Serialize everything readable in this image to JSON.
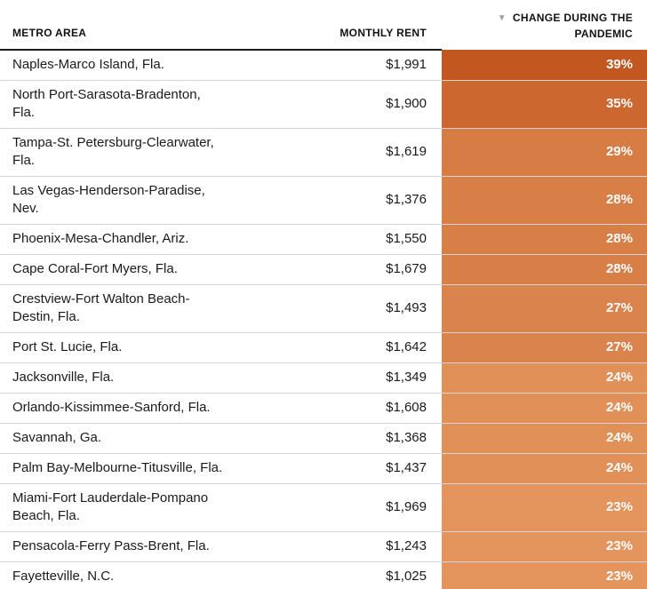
{
  "table": {
    "columns": [
      {
        "key": "metro",
        "label": "METRO AREA"
      },
      {
        "key": "rent",
        "label": "MONTHLY RENT"
      },
      {
        "key": "change",
        "label_line1": "CHANGE DURING THE",
        "label_line2": "PANDEMIC",
        "sort_icon": "▼",
        "sort_direction": "desc"
      }
    ],
    "rows": [
      {
        "metro_lines": [
          "Naples-Marco Island, Fla."
        ],
        "rent": "$1,991",
        "change": "39%",
        "color": "#c2571f"
      },
      {
        "metro_lines": [
          "North Port-Sarasota-Bradenton,",
          "Fla."
        ],
        "rent": "$1,900",
        "change": "35%",
        "color": "#cb672f"
      },
      {
        "metro_lines": [
          "Tampa-St. Petersburg-Clearwater,",
          "Fla."
        ],
        "rent": "$1,619",
        "change": "29%",
        "color": "#d67c44"
      },
      {
        "metro_lines": [
          "Las Vegas-Henderson-Paradise,",
          "Nev."
        ],
        "rent": "$1,376",
        "change": "28%",
        "color": "#d87f48"
      },
      {
        "metro_lines": [
          "Phoenix-Mesa-Chandler, Ariz."
        ],
        "rent": "$1,550",
        "change": "28%",
        "color": "#d87f48"
      },
      {
        "metro_lines": [
          "Cape Coral-Fort Myers, Fla."
        ],
        "rent": "$1,679",
        "change": "28%",
        "color": "#d87f48"
      },
      {
        "metro_lines": [
          "Crestview-Fort Walton Beach-",
          "Destin, Fla."
        ],
        "rent": "$1,493",
        "change": "27%",
        "color": "#da834c"
      },
      {
        "metro_lines": [
          "Port St. Lucie, Fla."
        ],
        "rent": "$1,642",
        "change": "27%",
        "color": "#da834c"
      },
      {
        "metro_lines": [
          "Jacksonville, Fla."
        ],
        "rent": "$1,349",
        "change": "24%",
        "color": "#e19058"
      },
      {
        "metro_lines": [
          "Orlando-Kissimmee-Sanford, Fla."
        ],
        "rent": "$1,608",
        "change": "24%",
        "color": "#e19058"
      },
      {
        "metro_lines": [
          "Savannah, Ga."
        ],
        "rent": "$1,368",
        "change": "24%",
        "color": "#e19058"
      },
      {
        "metro_lines": [
          "Palm Bay-Melbourne-Titusville, Fla."
        ],
        "rent": "$1,437",
        "change": "24%",
        "color": "#e19058"
      },
      {
        "metro_lines": [
          "Miami-Fort Lauderdale-Pompano",
          "Beach, Fla."
        ],
        "rent": "$1,969",
        "change": "23%",
        "color": "#e4955d"
      },
      {
        "metro_lines": [
          "Pensacola-Ferry Pass-Brent, Fla."
        ],
        "rent": "$1,243",
        "change": "23%",
        "color": "#e4955d"
      },
      {
        "metro_lines": [
          "Fayetteville, N.C."
        ],
        "rent": "$1,025",
        "change": "23%",
        "color": "#e4955d"
      }
    ]
  },
  "colors": {
    "body_text": "#1a1a1a",
    "header_text": "#121212",
    "header_underline": "#1a1a1a",
    "row_divider": "#d4d4d4",
    "percent_text": "#ffffff",
    "sort_arrow": "#9e9e9e",
    "footer_strip": "#eef0f1",
    "heat_max": "#c2571f",
    "heat_min": "#e4955d"
  },
  "chart_data": {
    "type": "table",
    "title": "",
    "columns": [
      "Metro area",
      "Monthly rent ($)",
      "Change during the pandemic (%)"
    ],
    "rows": [
      [
        "Naples-Marco Island, Fla.",
        1991,
        39
      ],
      [
        "North Port-Sarasota-Bradenton, Fla.",
        1900,
        35
      ],
      [
        "Tampa-St. Petersburg-Clearwater, Fla.",
        1619,
        29
      ],
      [
        "Las Vegas-Henderson-Paradise, Nev.",
        1376,
        28
      ],
      [
        "Phoenix-Mesa-Chandler, Ariz.",
        1550,
        28
      ],
      [
        "Cape Coral-Fort Myers, Fla.",
        1679,
        28
      ],
      [
        "Crestview-Fort Walton Beach-Destin, Fla.",
        1493,
        27
      ],
      [
        "Port St. Lucie, Fla.",
        1642,
        27
      ],
      [
        "Jacksonville, Fla.",
        1349,
        24
      ],
      [
        "Orlando-Kissimmee-Sanford, Fla.",
        1608,
        24
      ],
      [
        "Savannah, Ga.",
        1368,
        24
      ],
      [
        "Palm Bay-Melbourne-Titusville, Fla.",
        1437,
        24
      ],
      [
        "Miami-Fort Lauderdale-Pompano Beach, Fla.",
        1969,
        23
      ],
      [
        "Pensacola-Ferry Pass-Brent, Fla.",
        1243,
        23
      ],
      [
        "Fayetteville, N.C.",
        1025,
        23
      ]
    ],
    "sort": {
      "column": "Change during the pandemic (%)",
      "direction": "desc"
    },
    "heatmap": {
      "column": "Change during the pandemic (%)",
      "min_value": 23,
      "max_value": 39,
      "min_color": "#e4955d",
      "max_color": "#c2571f"
    }
  }
}
